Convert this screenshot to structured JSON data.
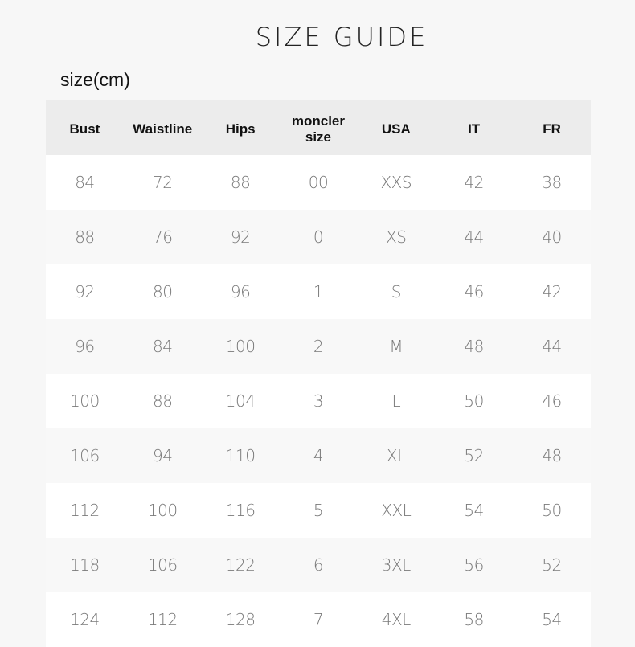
{
  "title": "SIZE GUIDE",
  "unit_label": "size(cm)",
  "table": {
    "headers": [
      "Bust",
      "Waistline",
      "Hips",
      "moncler size",
      "USA",
      "IT",
      "FR"
    ],
    "rows": [
      [
        "84",
        "72",
        "88",
        "00",
        "XXS",
        "42",
        "38"
      ],
      [
        "88",
        "76",
        "92",
        "0",
        "XS",
        "44",
        "40"
      ],
      [
        "92",
        "80",
        "96",
        "1",
        "S",
        "46",
        "42"
      ],
      [
        "96",
        "84",
        "100",
        "2",
        "M",
        "48",
        "44"
      ],
      [
        "100",
        "88",
        "104",
        "3",
        "L",
        "50",
        "46"
      ],
      [
        "106",
        "94",
        "110",
        "4",
        "XL",
        "52",
        "48"
      ],
      [
        "112",
        "100",
        "116",
        "5",
        "XXL",
        "54",
        "50"
      ],
      [
        "118",
        "106",
        "122",
        "6",
        "3XL",
        "56",
        "52"
      ],
      [
        "124",
        "112",
        "128",
        "7",
        "4XL",
        "58",
        "54"
      ]
    ]
  },
  "colors": {
    "background": "#f7f7f7",
    "header_row": "#ececec",
    "row_alt": "#f8f8f8",
    "row": "#ffffff"
  }
}
